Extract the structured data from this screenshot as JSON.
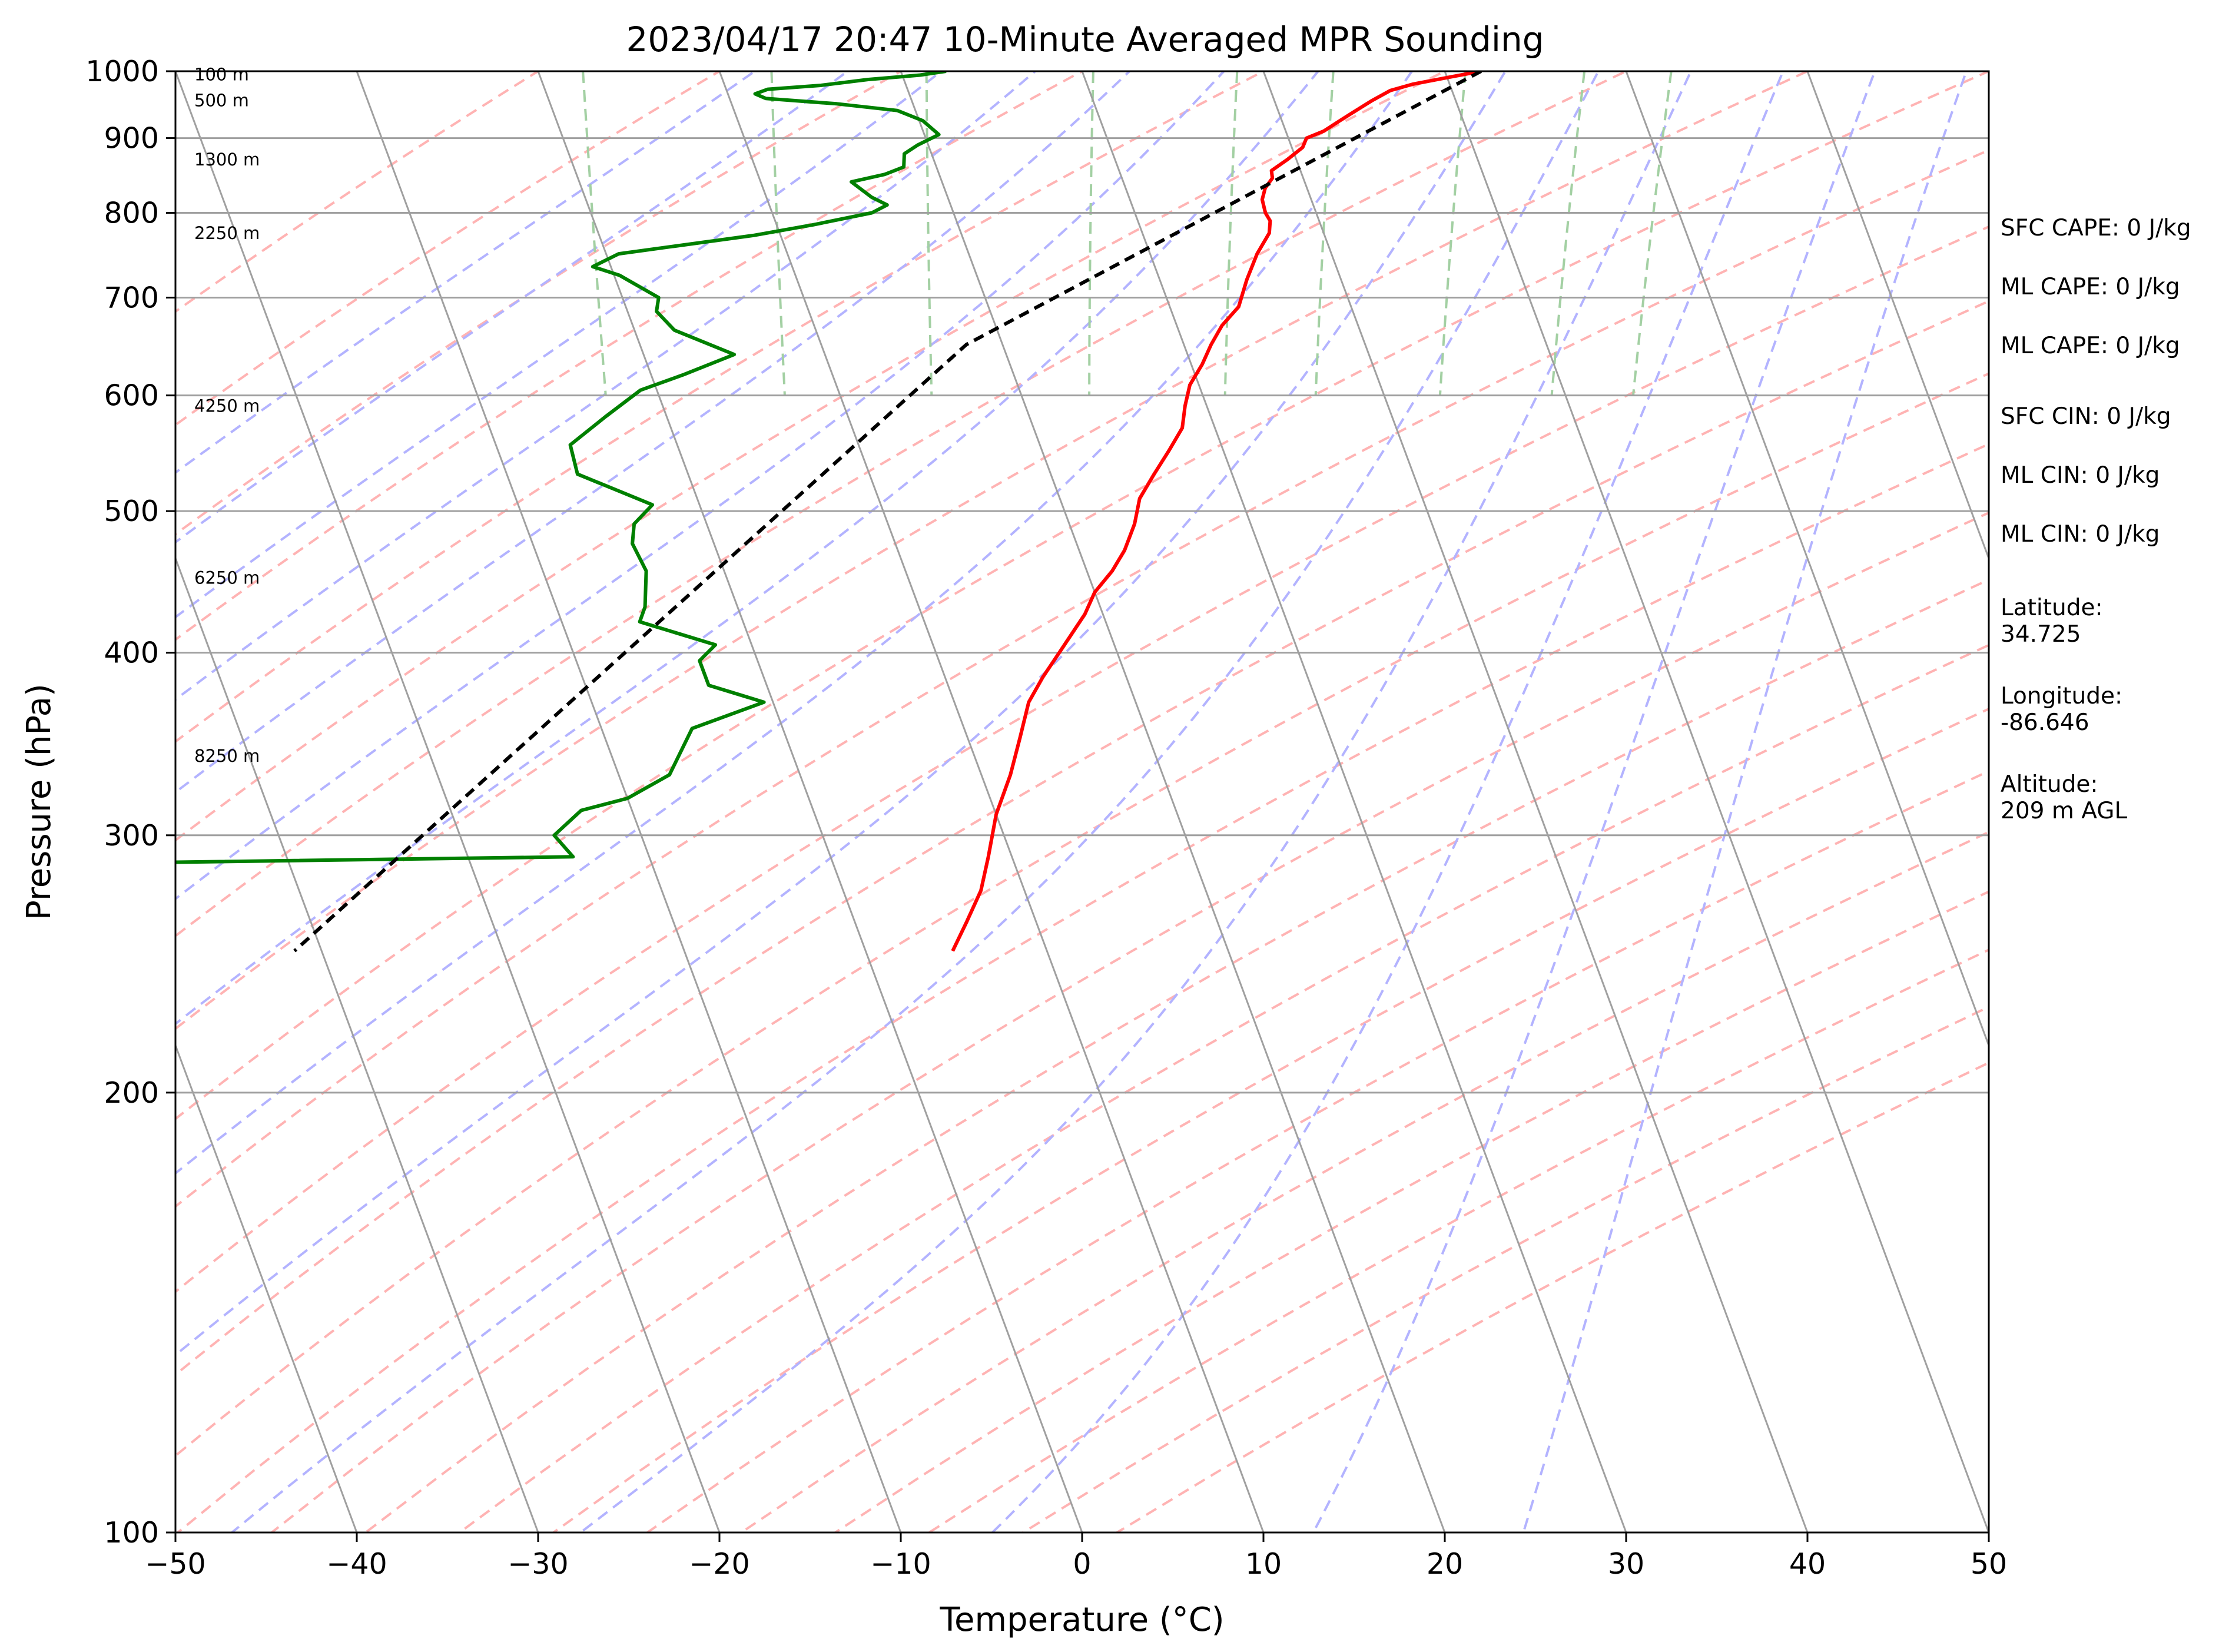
{
  "chart_data": {
    "type": "line",
    "title": "2023/04/17 20:47 10-Minute Averaged MPR Sounding",
    "xlabel": "Temperature (°C)",
    "ylabel": "Pressure (hPa)",
    "xlim": [
      -50,
      50
    ],
    "ylim": [
      1000,
      100
    ],
    "y_scale": "log",
    "grid": true,
    "x_ticks": [
      "−50",
      "−40",
      "−30",
      "−20",
      "−10",
      "0",
      "10",
      "20",
      "30",
      "40",
      "50"
    ],
    "y_ticks": [
      "100",
      "200",
      "300",
      "400",
      "500",
      "600",
      "700",
      "800",
      "900",
      "1000"
    ],
    "skew": "temperature isotherms skewed (skew-T log-p diagram)",
    "colors": {
      "temperature": "#ff0000",
      "dewpoint": "#008000",
      "parcel": "#000000",
      "isotherms": "#a0a0a0",
      "dry_adiabats": "#ffb3b3",
      "moist_adiabats": "#b3b3ff",
      "mixing_ratio": "#a3d0a3"
    },
    "series": [
      {
        "key": "temperature",
        "points": [
          {
            "p": 1000,
            "t": 22.0
          },
          {
            "p": 990,
            "t": 20.0
          },
          {
            "p": 980,
            "t": 18.0
          },
          {
            "p": 970,
            "t": 16.6
          },
          {
            "p": 955,
            "t": 15.4
          },
          {
            "p": 940,
            "t": 14.3
          },
          {
            "p": 925,
            "t": 13.2
          },
          {
            "p": 910,
            "t": 12.1
          },
          {
            "p": 900,
            "t": 11.0
          },
          {
            "p": 887,
            "t": 10.6
          },
          {
            "p": 870,
            "t": 9.5
          },
          {
            "p": 855,
            "t": 8.4
          },
          {
            "p": 845,
            "t": 8.3
          },
          {
            "p": 832,
            "t": 7.7
          },
          {
            "p": 817,
            "t": 7.3
          },
          {
            "p": 800,
            "t": 7.2
          },
          {
            "p": 790,
            "t": 7.3
          },
          {
            "p": 775,
            "t": 7.0
          },
          {
            "p": 750,
            "t": 5.9
          },
          {
            "p": 720,
            "t": 4.8
          },
          {
            "p": 690,
            "t": 3.8
          },
          {
            "p": 670,
            "t": 2.5
          },
          {
            "p": 650,
            "t": 1.5
          },
          {
            "p": 630,
            "t": 0.6
          },
          {
            "p": 610,
            "t": -0.5
          },
          {
            "p": 590,
            "t": -1.2
          },
          {
            "p": 570,
            "t": -1.8
          },
          {
            "p": 550,
            "t": -3.0
          },
          {
            "p": 530,
            "t": -4.3
          },
          {
            "p": 510,
            "t": -5.6
          },
          {
            "p": 490,
            "t": -6.4
          },
          {
            "p": 470,
            "t": -7.5
          },
          {
            "p": 455,
            "t": -8.6
          },
          {
            "p": 440,
            "t": -10.0
          },
          {
            "p": 425,
            "t": -11.0
          },
          {
            "p": 400,
            "t": -13.2
          },
          {
            "p": 385,
            "t": -14.6
          },
          {
            "p": 370,
            "t": -15.9
          },
          {
            "p": 350,
            "t": -17.1
          },
          {
            "p": 330,
            "t": -18.4
          },
          {
            "p": 310,
            "t": -20.0
          },
          {
            "p": 290,
            "t": -21.3
          },
          {
            "p": 275,
            "t": -22.4
          },
          {
            "p": 262,
            "t": -23.8
          },
          {
            "p": 250,
            "t": -25.2
          }
        ]
      },
      {
        "key": "dewpoint",
        "points": [
          {
            "p": 1000,
            "t": -7.5
          },
          {
            "p": 994,
            "t": -9.0
          },
          {
            "p": 987,
            "t": -12.0
          },
          {
            "p": 978,
            "t": -14.7
          },
          {
            "p": 972,
            "t": -17.7
          },
          {
            "p": 965,
            "t": -18.5
          },
          {
            "p": 958,
            "t": -18.0
          },
          {
            "p": 950,
            "t": -14.2
          },
          {
            "p": 940,
            "t": -11.0
          },
          {
            "p": 925,
            "t": -9.8
          },
          {
            "p": 905,
            "t": -9.2
          },
          {
            "p": 890,
            "t": -10.6
          },
          {
            "p": 878,
            "t": -11.5
          },
          {
            "p": 860,
            "t": -11.8
          },
          {
            "p": 850,
            "t": -13.0
          },
          {
            "p": 840,
            "t": -15.0
          },
          {
            "p": 820,
            "t": -14.2
          },
          {
            "p": 810,
            "t": -13.5
          },
          {
            "p": 800,
            "t": -14.5
          },
          {
            "p": 785,
            "t": -18.0
          },
          {
            "p": 772,
            "t": -21.5
          },
          {
            "p": 750,
            "t": -29.3
          },
          {
            "p": 735,
            "t": -31.0
          },
          {
            "p": 725,
            "t": -29.7
          },
          {
            "p": 700,
            "t": -28.0
          },
          {
            "p": 685,
            "t": -28.4
          },
          {
            "p": 665,
            "t": -27.8
          },
          {
            "p": 640,
            "t": -25.0
          },
          {
            "p": 620,
            "t": -28.2
          },
          {
            "p": 605,
            "t": -30.9
          },
          {
            "p": 580,
            "t": -33.4
          },
          {
            "p": 555,
            "t": -35.9
          },
          {
            "p": 530,
            "t": -36.1
          },
          {
            "p": 505,
            "t": -32.6
          },
          {
            "p": 490,
            "t": -34.0
          },
          {
            "p": 475,
            "t": -34.5
          },
          {
            "p": 455,
            "t": -34.3
          },
          {
            "p": 430,
            "t": -35.1
          },
          {
            "p": 420,
            "t": -35.7
          },
          {
            "p": 405,
            "t": -32.0
          },
          {
            "p": 395,
            "t": -33.2
          },
          {
            "p": 380,
            "t": -33.2
          },
          {
            "p": 370,
            "t": -30.5
          },
          {
            "p": 355,
            "t": -35.0
          },
          {
            "p": 330,
            "t": -37.2
          },
          {
            "p": 318,
            "t": -40.0
          },
          {
            "p": 312,
            "t": -42.8
          },
          {
            "p": 300,
            "t": -44.8
          },
          {
            "p": 290,
            "t": -44.2
          },
          {
            "p": 287,
            "t": -71.0
          },
          {
            "p": 286,
            "t": -85.0
          }
        ]
      },
      {
        "key": "parcel",
        "points": [
          {
            "p": 1000,
            "t": 22.0
          },
          {
            "p": 650,
            "t": -12.0
          },
          {
            "p": 250,
            "t": -61.5
          }
        ]
      }
    ],
    "height_labels": [
      {
        "p": 995,
        "text": "100 m"
      },
      {
        "p": 955,
        "text": "500 m"
      },
      {
        "p": 870,
        "text": "1300 m"
      },
      {
        "p": 775,
        "text": "2250 m"
      },
      {
        "p": 590,
        "text": "4250 m"
      },
      {
        "p": 450,
        "text": "6250 m"
      },
      {
        "p": 340,
        "text": "8250 m"
      }
    ],
    "annotations": [
      [
        "SFC CAPE: 0 J/kg"
      ],
      [
        "ML CAPE: 0 J/kg"
      ],
      [
        "ML CAPE: 0 J/kg"
      ],
      [
        "SFC CIN: 0 J/kg"
      ],
      [
        "ML CIN: 0 J/kg"
      ],
      [
        "ML CIN: 0 J/kg"
      ],
      [
        "Latitude:",
        "34.725"
      ],
      [
        "Longitude:",
        "-86.646"
      ],
      [
        "Altitude:",
        "209 m AGL"
      ]
    ]
  }
}
